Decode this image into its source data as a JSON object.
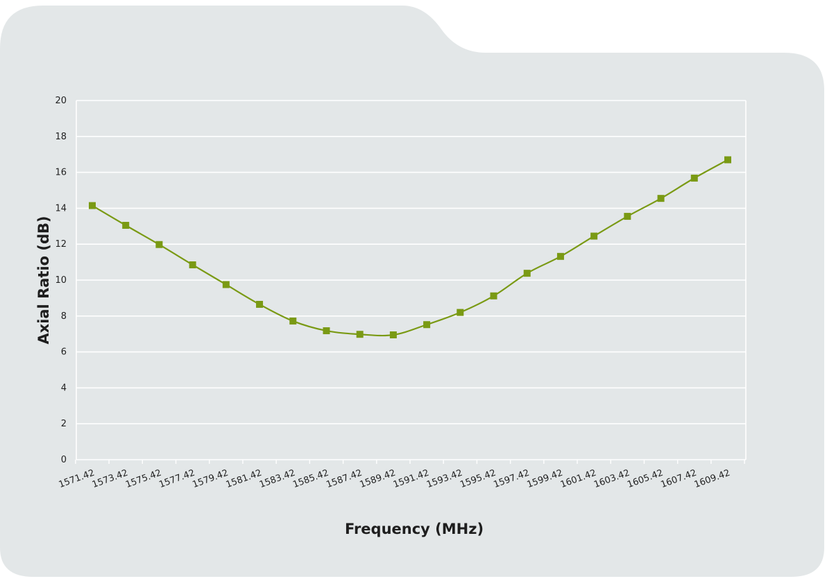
{
  "colors": {
    "panel": "#e3e7e8",
    "series": "#7a9a14",
    "grid": "#ffffff"
  },
  "chart_data": {
    "type": "line",
    "title": "",
    "xlabel": "Frequency (MHz)",
    "ylabel": "Axial Ratio (dB)",
    "ylim": [
      0,
      20
    ],
    "y_ticks": [
      "0",
      "2",
      "4",
      "6",
      "8",
      "10",
      "12",
      "14",
      "16",
      "18",
      "20"
    ],
    "grid": true,
    "x_tick_labels": [
      "1571.42",
      "1573.42",
      "1575.42",
      "1577.42",
      "1579.42",
      "1581.42",
      "1583.42",
      "1585.42",
      "1587.42",
      "1589.42",
      "1591.42",
      "1593.42",
      "1595.42",
      "1597.42",
      "1599.42",
      "1601.42",
      "1603.42",
      "1605.42",
      "1607.42",
      "1609.42"
    ],
    "x": [
      1571.42,
      1573.42,
      1575.42,
      1577.42,
      1579.42,
      1581.42,
      1583.42,
      1585.42,
      1587.42,
      1589.42,
      1591.42,
      1593.42,
      1595.42,
      1597.42,
      1599.42,
      1601.42,
      1603.42,
      1605.42,
      1607.42,
      1609.42
    ],
    "series": [
      {
        "values": [
          14.15,
          13.05,
          11.98,
          10.85,
          9.75,
          8.65,
          7.72,
          7.18,
          6.98,
          6.95,
          7.52,
          8.2,
          9.12,
          10.38,
          11.32,
          12.45,
          13.55,
          14.55,
          15.68,
          16.7
        ]
      }
    ]
  }
}
